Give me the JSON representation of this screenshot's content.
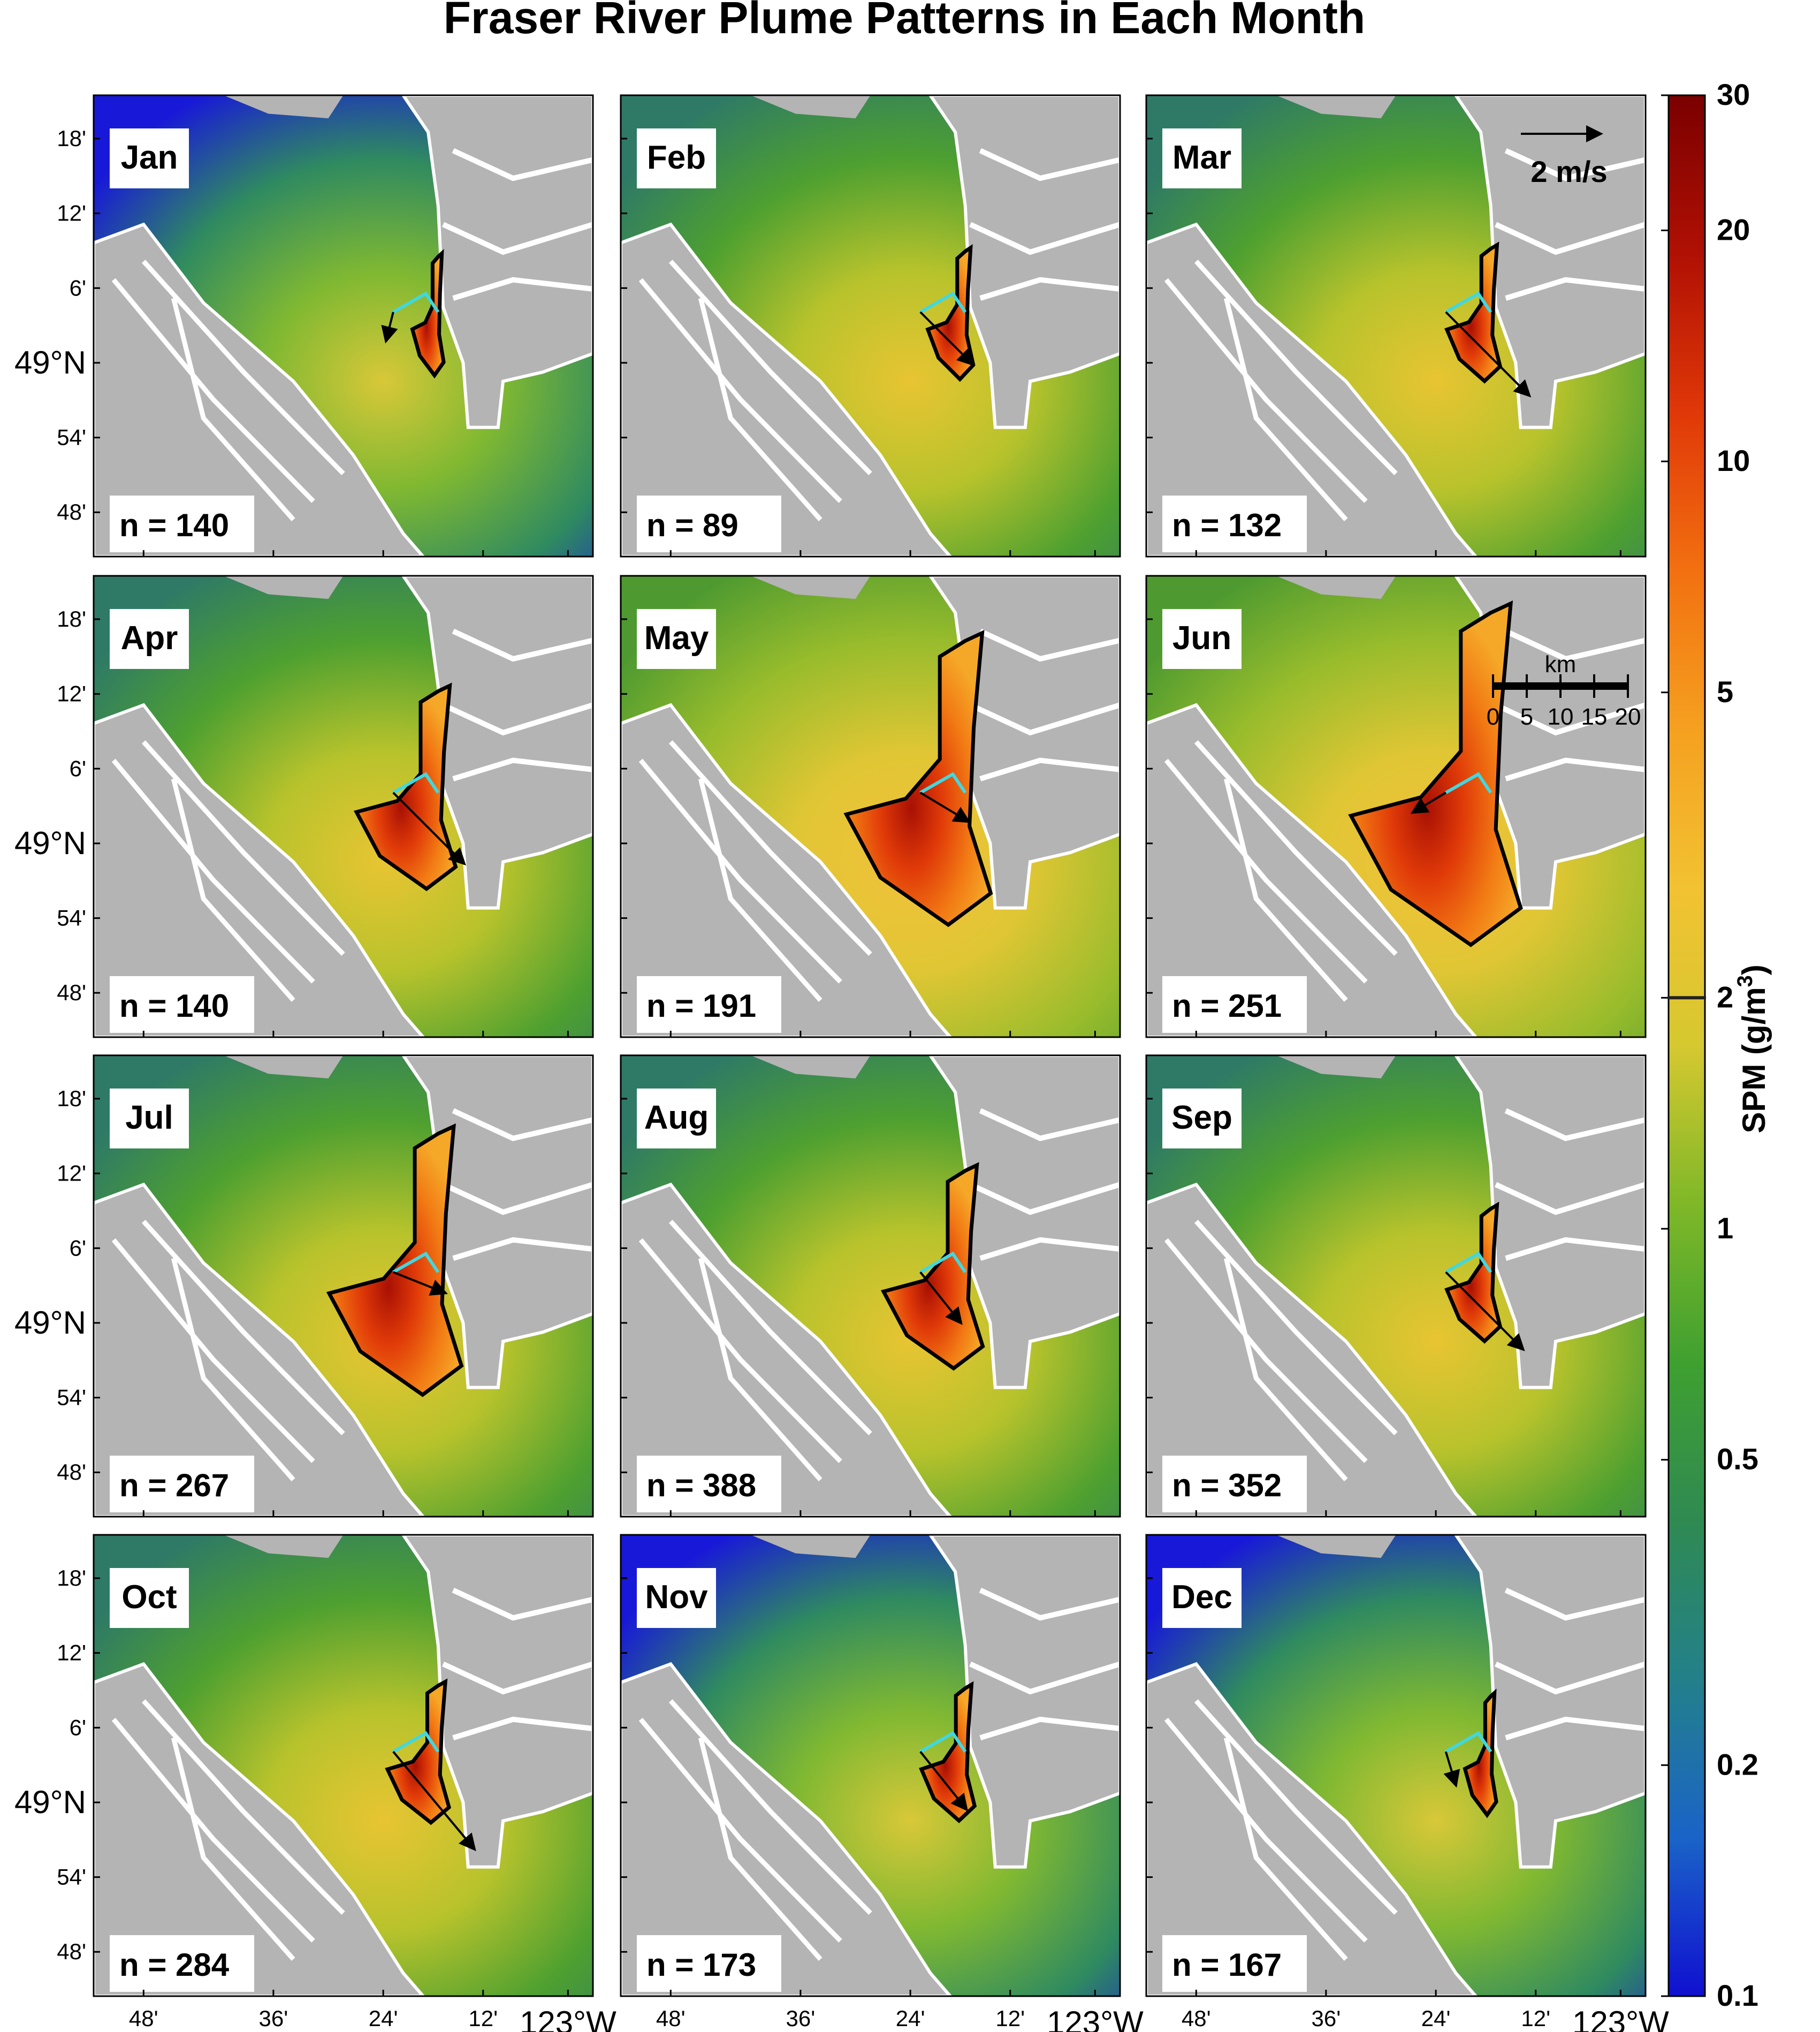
{
  "chart_data": {
    "type": "heatmap",
    "title": "Fraser River Plume Patterns in Each Month",
    "layout": "4 rows x 3 columns of map panels",
    "lat_ticks": [
      "18'",
      "12'",
      "6'",
      "49°N",
      "54'",
      "48'"
    ],
    "lon_ticks": [
      "48'",
      "36'",
      "24'",
      "12'",
      "123°W"
    ],
    "panels": [
      {
        "month": "Jan",
        "n_label": "n = 140",
        "n": 140,
        "plume_extent": 0.3,
        "arrow_dir": [
          -0.25,
          1.0
        ],
        "arrow_len": 0.05,
        "background": "low"
      },
      {
        "month": "Feb",
        "n_label": "n = 89",
        "n": 89,
        "plume_extent": 0.4,
        "arrow_dir": [
          1.0,
          1.0
        ],
        "arrow_len": 0.3,
        "background": "mid"
      },
      {
        "month": "Mar",
        "n_label": "n = 132",
        "n": 132,
        "plume_extent": 0.45,
        "arrow_dir": [
          1.0,
          1.0
        ],
        "arrow_len": 0.55,
        "background": "mid"
      },
      {
        "month": "Apr",
        "n_label": "n = 140",
        "n": 140,
        "plume_extent": 0.7,
        "arrow_dir": [
          1.0,
          1.0
        ],
        "arrow_len": 0.45,
        "background": "mid"
      },
      {
        "month": "May",
        "n_label": "n = 191",
        "n": 191,
        "plume_extent": 0.9,
        "arrow_dir": [
          1.0,
          0.6
        ],
        "arrow_len": 0.2,
        "background": "high"
      },
      {
        "month": "Jun",
        "n_label": "n = 251",
        "n": 251,
        "plume_extent": 1.0,
        "arrow_dir": [
          -1.0,
          0.6
        ],
        "arrow_len": 0.1,
        "background": "high"
      },
      {
        "month": "Jul",
        "n_label": "n = 267",
        "n": 267,
        "plume_extent": 0.85,
        "arrow_dir": [
          1.0,
          0.4
        ],
        "arrow_len": 0.2,
        "background": "mid"
      },
      {
        "month": "Aug",
        "n_label": "n = 388",
        "n": 388,
        "plume_extent": 0.7,
        "arrow_dir": [
          0.8,
          1.0
        ],
        "arrow_len": 0.25,
        "background": "mid"
      },
      {
        "month": "Sep",
        "n_label": "n = 352",
        "n": 352,
        "plume_extent": 0.45,
        "arrow_dir": [
          1.0,
          1.0
        ],
        "arrow_len": 0.5,
        "background": "mid"
      },
      {
        "month": "Oct",
        "n_label": "n = 284",
        "n": 284,
        "plume_extent": 0.5,
        "arrow_dir": [
          1.0,
          1.2
        ],
        "arrow_len": 0.6,
        "background": "mid"
      },
      {
        "month": "Nov",
        "n_label": "n = 173",
        "n": 173,
        "plume_extent": 0.45,
        "arrow_dir": [
          0.8,
          1.0
        ],
        "arrow_len": 0.3,
        "background": "low"
      },
      {
        "month": "Dec",
        "n_label": "n = 167",
        "n": 167,
        "plume_extent": 0.3,
        "arrow_dir": [
          0.3,
          1.0
        ],
        "arrow_len": 0.08,
        "background": "low"
      }
    ],
    "colorbar": {
      "label": "SPM (g/m",
      "label_superscript": "3",
      "label_close": ")",
      "scale": "log",
      "range": [
        0.1,
        30
      ],
      "ticks": [
        {
          "value": 30,
          "label": "30"
        },
        {
          "value": 20,
          "label": "20"
        },
        {
          "value": 10,
          "label": "10"
        },
        {
          "value": 5,
          "label": "5"
        },
        {
          "value": 2,
          "label": "2"
        },
        {
          "value": 1,
          "label": "1"
        },
        {
          "value": 0.5,
          "label": "0.5"
        },
        {
          "value": 0.2,
          "label": "0.2"
        },
        {
          "value": 0.1,
          "label": "0.1"
        }
      ],
      "plume_threshold": 2,
      "colors": [
        "#1010d0",
        "#1a63c8",
        "#23808a",
        "#2f8a52",
        "#3fa030",
        "#7fb828",
        "#d6c830",
        "#f2c232",
        "#f5a020",
        "#f27010",
        "#e03808",
        "#b01004",
        "#7a0000"
      ]
    },
    "velocity_scale_label": "2 m/s",
    "distance_scale": {
      "unit_label": "km",
      "tick_labels": [
        "0",
        "5",
        "10",
        "15",
        "20"
      ]
    }
  },
  "colors": {
    "land": "#b4b4b4",
    "rivers": "#ffffff",
    "plume_contour": "#000000",
    "mouth_line": "#40d8e0"
  }
}
